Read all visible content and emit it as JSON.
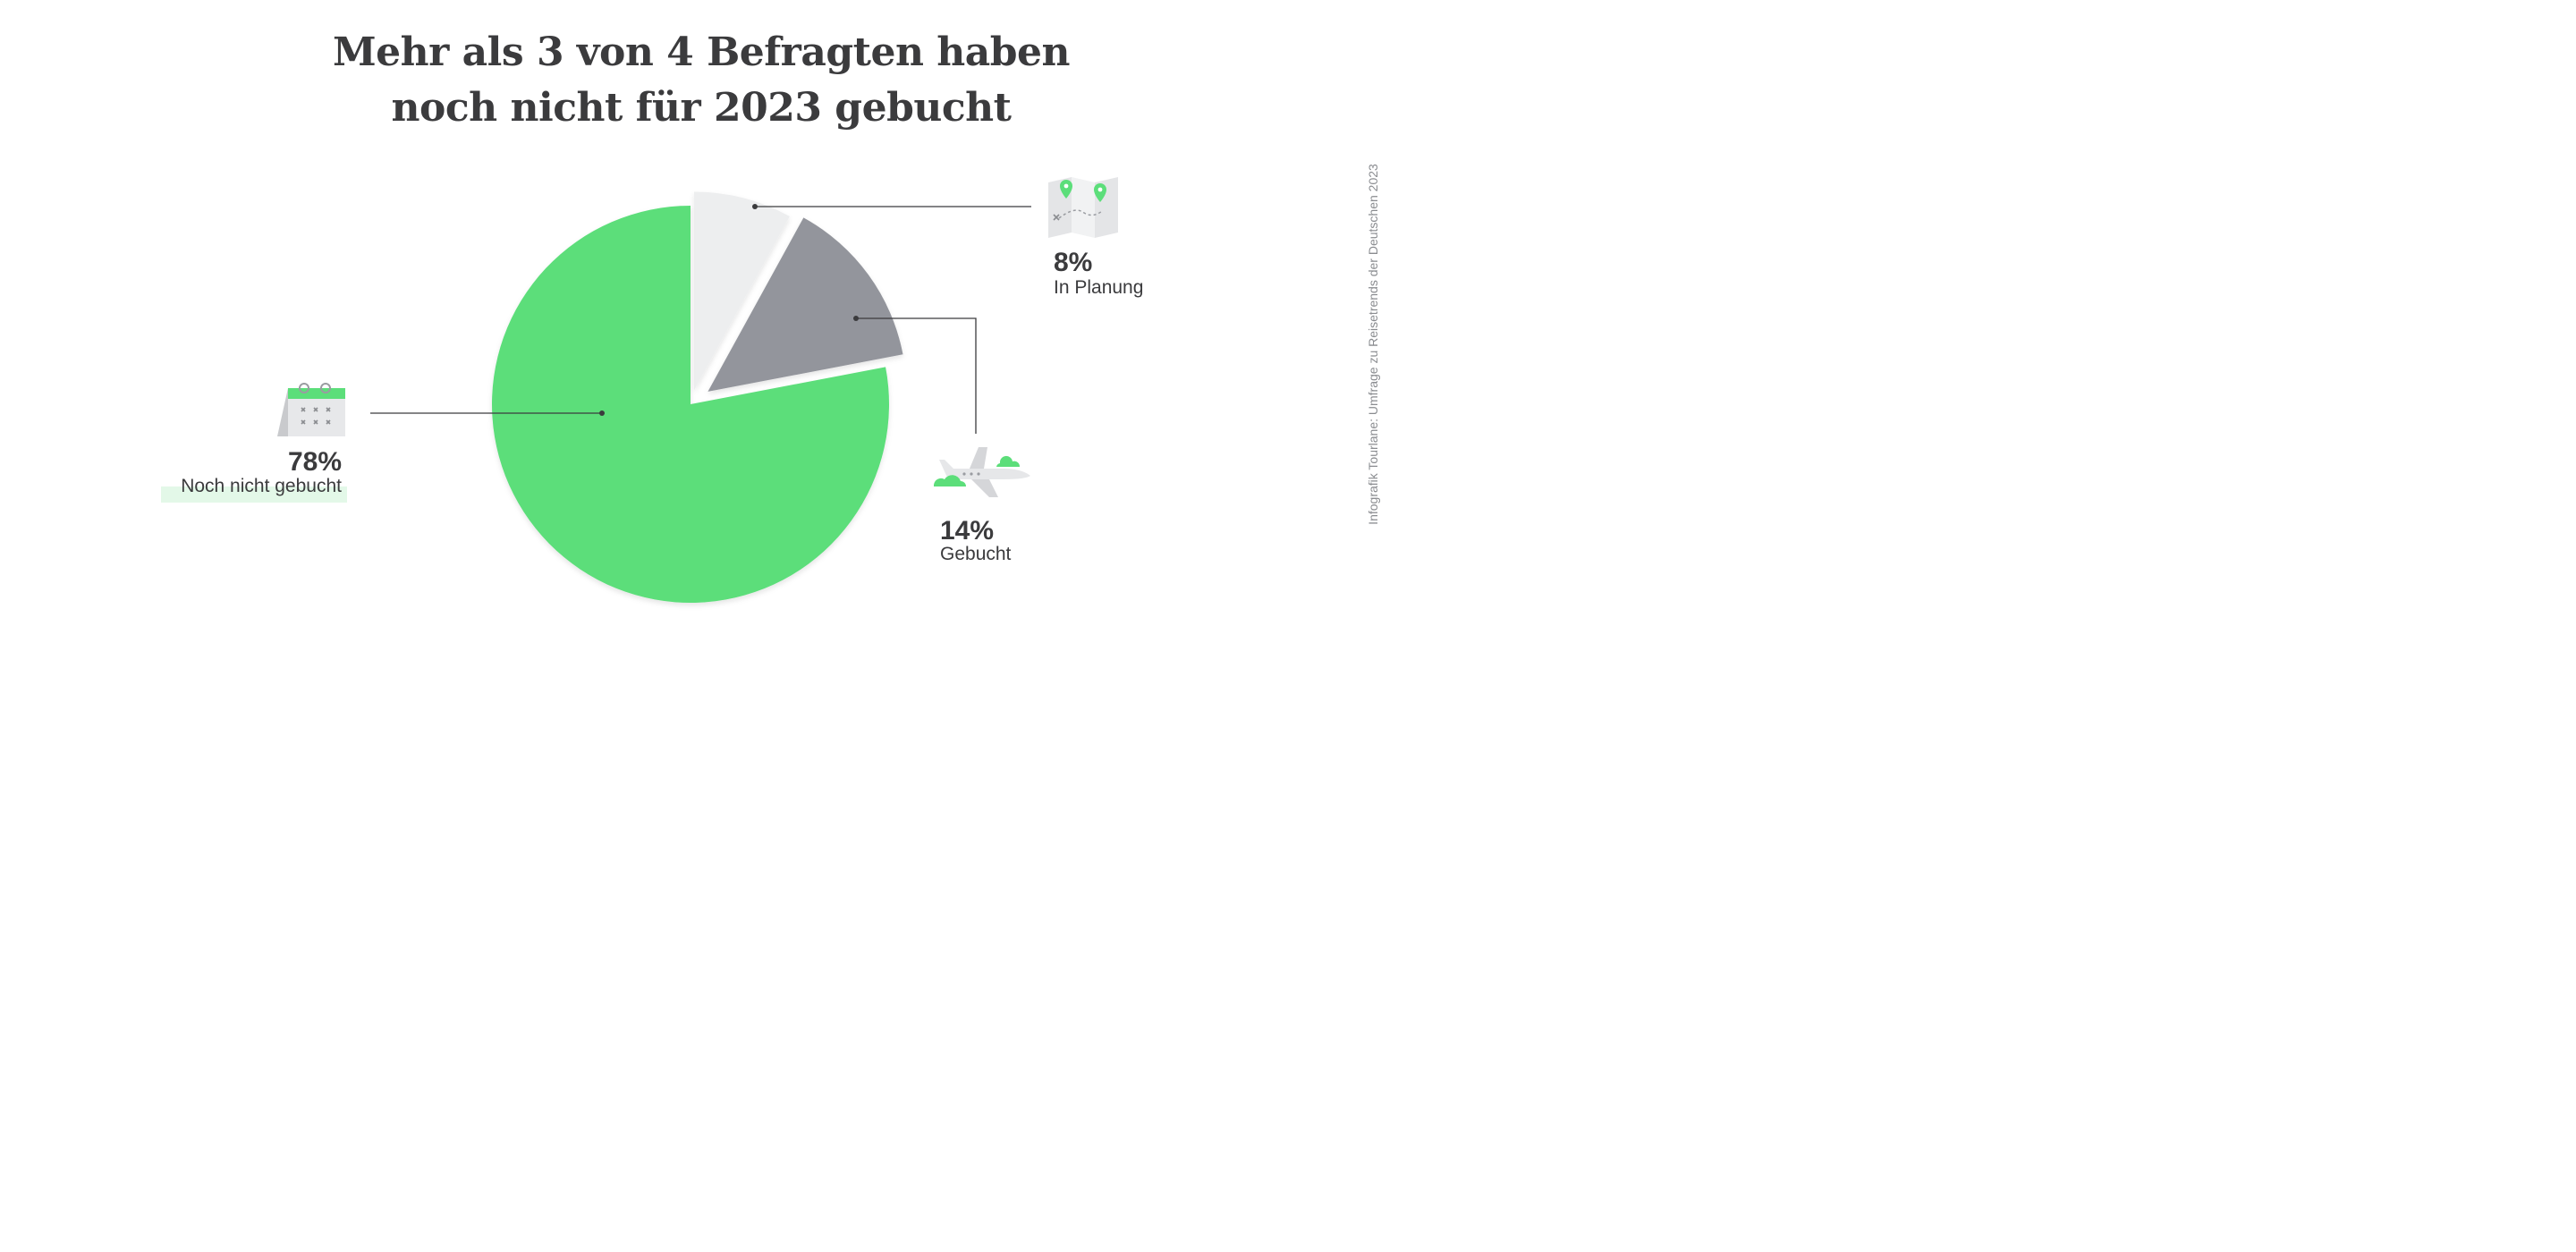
{
  "title_lines": [
    "Mehr als 3 von 4 Befragten haben",
    "noch nicht für 2023 gebucht"
  ],
  "source": "Infografik Tourlane: Umfrage zu Reisetrends der Deutschen 2023",
  "colors": {
    "green": "#5cde7a",
    "gray": "#93959c",
    "lightgray": "#edeeef",
    "text": "#3b3b3d",
    "highlight": "#e3f8e8"
  },
  "icons": {
    "noch_nicht": "calendar-icon",
    "in_planung": "map-icon",
    "gebucht": "airplane-icon"
  },
  "chart_data": {
    "type": "pie",
    "title": "Mehr als 3 von 4 Befragten haben noch nicht für 2023 gebucht",
    "slices": [
      {
        "key": "in_planung",
        "label": "In Planung",
        "value": 8,
        "value_label": "8%",
        "color": "#edeeef"
      },
      {
        "key": "gebucht",
        "label": "Gebucht",
        "value": 14,
        "value_label": "14%",
        "color": "#93959c"
      },
      {
        "key": "noch_nicht",
        "label": "Noch nicht gebucht",
        "value": 78,
        "value_label": "78%",
        "color": "#5cde7a"
      }
    ],
    "start_angle_deg": 0,
    "direction": "clockwise",
    "exploded": [
      "in_planung",
      "gebucht"
    ]
  }
}
